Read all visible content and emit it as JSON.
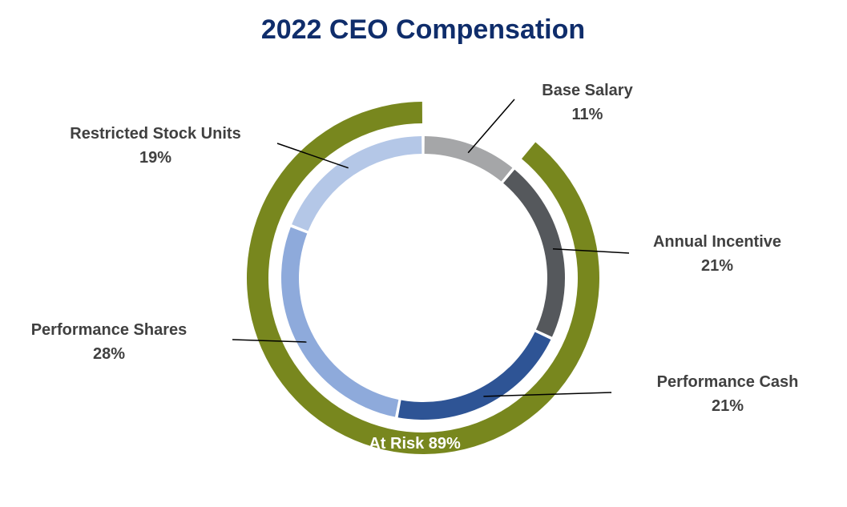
{
  "chart_data": {
    "type": "pie",
    "variant": "double-donut",
    "title": "2022 CEO Compensation",
    "slices": [
      {
        "name": "Base Salary",
        "value": 11,
        "label": "11%",
        "color": "#A5A6A8"
      },
      {
        "name": "Annual Incentive",
        "value": 21,
        "label": "21%",
        "color": "#55585C"
      },
      {
        "name": "Performance Cash",
        "value": 21,
        "label": "21%",
        "color": "#2E5495"
      },
      {
        "name": "Performance Shares",
        "value": 28,
        "label": "28%",
        "color": "#8EAADB"
      },
      {
        "name": "Restricted Stock Units",
        "value": 19,
        "label": "19%",
        "color": "#B4C7E7"
      }
    ],
    "outer_ring": {
      "label": "At Risk 89%",
      "value": 89,
      "color": "#78871E"
    },
    "colors": {
      "title": "#0F2D6B",
      "label_text": "#404040",
      "outer_label_text": "#FFFFFF",
      "leader_line": "#000000"
    }
  }
}
